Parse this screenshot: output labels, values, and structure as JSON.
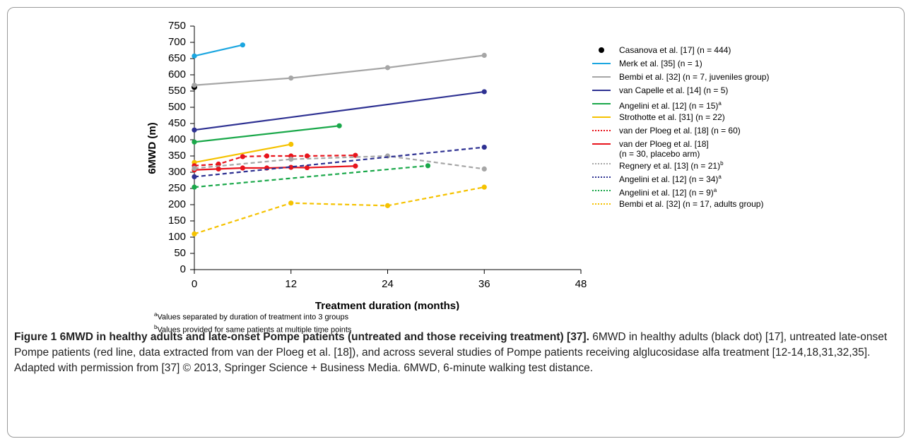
{
  "chart_data": {
    "type": "line",
    "xlabel": "Treatment duration (months)",
    "ylabel": "6MWD (m)",
    "xlim": [
      0,
      48
    ],
    "xticks": [
      0,
      12,
      24,
      36,
      48
    ],
    "ylim": [
      0,
      750
    ],
    "yticks": [
      0,
      50,
      100,
      150,
      200,
      250,
      300,
      350,
      400,
      450,
      500,
      550,
      600,
      650,
      700,
      750
    ],
    "grid": false,
    "series": [
      {
        "name": "Casanova et al. [17] (n = 444)",
        "color": "#000000",
        "style": "dot",
        "x": [
          0
        ],
        "values": [
          562
        ]
      },
      {
        "name": "Merk et al. [35] (n = 1)",
        "color": "#1ba6e0",
        "style": "solid",
        "x": [
          0,
          6
        ],
        "values": [
          658,
          692
        ]
      },
      {
        "name": "Bembi et al. [32] (n = 7, juveniles group)",
        "color": "#a6a6a6",
        "style": "solid",
        "x": [
          0,
          12,
          24,
          36
        ],
        "values": [
          568,
          590,
          622,
          660
        ]
      },
      {
        "name": "van Capelle et al. [14] (n = 5)",
        "color": "#2e3192",
        "style": "solid",
        "x": [
          0,
          36
        ],
        "values": [
          430,
          548
        ]
      },
      {
        "name": "Angelini et al. [12] (n = 15)",
        "superscript": "a",
        "color": "#1aa84a",
        "style": "solid",
        "x": [
          0,
          18
        ],
        "values": [
          393,
          443
        ]
      },
      {
        "name": "Strothotte et al. [31] (n = 22)",
        "color": "#f5c200",
        "style": "solid",
        "x": [
          0,
          12
        ],
        "values": [
          330,
          386
        ]
      },
      {
        "name": "van der Ploeg et al. [18] (n = 60)",
        "color": "#e8141c",
        "style": "dashed",
        "x": [
          0,
          3,
          6,
          9,
          12,
          14,
          20
        ],
        "values": [
          320,
          325,
          348,
          350,
          350,
          350,
          352
        ]
      },
      {
        "name": "van der Ploeg et al. [18]\n(n = 30, placebo arm)",
        "color": "#e8141c",
        "style": "solid",
        "x": [
          0,
          3,
          6,
          9,
          12,
          14,
          20
        ],
        "values": [
          307,
          310,
          313,
          313,
          315,
          314,
          319
        ]
      },
      {
        "name": "Regnery et al. [13] (n = 21)",
        "superscript": "b",
        "color": "#a6a6a6",
        "style": "dashed",
        "x": [
          0,
          12,
          24,
          36
        ],
        "values": [
          312,
          340,
          350,
          310
        ]
      },
      {
        "name": "Angelini et al. [12] (n = 34)",
        "superscript": "a",
        "color": "#2e3192",
        "style": "dashed",
        "x": [
          0,
          36
        ],
        "values": [
          286,
          377
        ]
      },
      {
        "name": "Angelini et al. [12] (n = 9)",
        "superscript": "a",
        "color": "#1aa84a",
        "style": "dashed",
        "x": [
          0,
          29
        ],
        "values": [
          254,
          320
        ]
      },
      {
        "name": "Bembi et al. [32] (n = 17, adults group)",
        "color": "#f5c200",
        "style": "dashed",
        "x": [
          0,
          12,
          24,
          36
        ],
        "values": [
          110,
          205,
          197,
          254
        ]
      }
    ],
    "footnotes": [
      {
        "mark": "a",
        "text": "Values separated by duration of treatment into 3 groups"
      },
      {
        "mark": "b",
        "text": "Values provided for same patients at multiple time points"
      }
    ],
    "caption": {
      "label": "Figure 1",
      "title": "6MWD in healthy adults and late-onset Pompe patients (untreated and those receiving treatment) [37].",
      "text": "6MWD in healthy adults (black dot) [17], untreated late-onset Pompe patients (red line, data extracted from van der Ploeg et al. [18]), and across several studies of Pompe patients receiving alglucosidase alfa treatment [12-14,18,31,32,35]. Adapted with permission from [37] © 2013, Springer Science + Business Media. 6MWD, 6-minute walking test distance."
    }
  }
}
